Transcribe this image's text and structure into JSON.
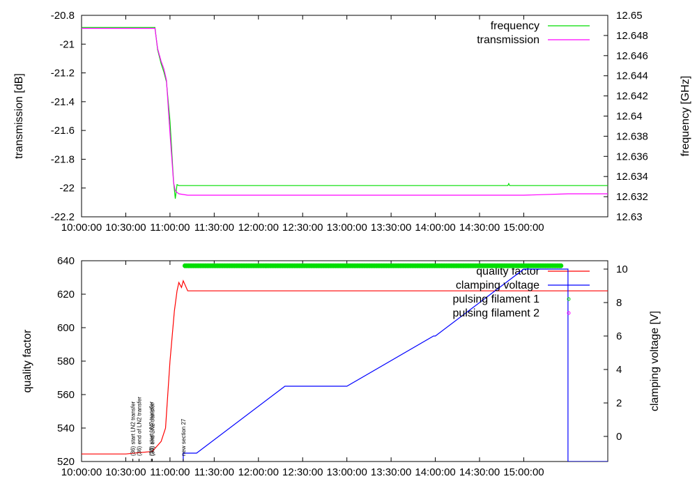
{
  "chart_data": [
    {
      "type": "line",
      "panel": "top",
      "ylabel": "transmission [dB]",
      "y2label": "frequency [GHz]",
      "x_ticks": [
        "10:00:00",
        "10:30:00",
        "11:00:00",
        "11:30:00",
        "12:00:00",
        "12:30:00",
        "13:00:00",
        "13:30:00",
        "14:00:00",
        "14:30:00",
        "15:00:00"
      ],
      "x_range_hours": [
        10.0,
        15.95
      ],
      "ylim": [
        -22.2,
        -20.8
      ],
      "y_ticks": [
        "-20.8",
        "-21",
        "-21.2",
        "-21.4",
        "-21.6",
        "-21.8",
        "-22",
        "-22.2"
      ],
      "y2lim": [
        12.63,
        12.65
      ],
      "y2_ticks": [
        "12.63",
        "12.632",
        "12.634",
        "12.636",
        "12.638",
        "12.64",
        "12.642",
        "12.644",
        "12.646",
        "12.648",
        "12.65"
      ],
      "legend_position": "top-right",
      "series": [
        {
          "name": "frequency",
          "axis": "y2",
          "color": "#00dd00",
          "x": [
            10.0,
            10.83,
            10.86,
            10.9,
            10.93,
            10.96,
            11.0,
            11.04,
            11.06,
            11.08,
            11.1,
            11.15,
            12.0,
            13.0,
            14.0,
            14.82,
            14.83,
            14.84,
            15.0,
            15.95
          ],
          "y": [
            12.6488,
            12.6488,
            12.6466,
            12.6452,
            12.6444,
            12.6434,
            12.6395,
            12.6335,
            12.6318,
            12.6332,
            12.6331,
            12.6331,
            12.6331,
            12.6331,
            12.6331,
            12.6331,
            12.6333,
            12.6331,
            12.6331,
            12.6331
          ]
        },
        {
          "name": "transmission",
          "axis": "y1",
          "color": "#ff00ff",
          "x": [
            10.0,
            10.83,
            10.86,
            10.9,
            10.93,
            10.96,
            11.0,
            11.04,
            11.06,
            11.08,
            11.1,
            11.2,
            12.0,
            13.0,
            14.0,
            15.0,
            15.5,
            15.95
          ],
          "y": [
            -20.89,
            -20.89,
            -21.03,
            -21.12,
            -21.17,
            -21.25,
            -21.62,
            -21.96,
            -22.02,
            -22.03,
            -22.04,
            -22.05,
            -22.05,
            -22.05,
            -22.05,
            -22.05,
            -22.04,
            -22.04
          ]
        }
      ]
    },
    {
      "type": "line",
      "panel": "bottom",
      "ylabel": "quality factor",
      "y2label": "clamping voltage [V]",
      "x_ticks": [
        "10:00:00",
        "10:30:00",
        "11:00:00",
        "11:30:00",
        "12:00:00",
        "12:30:00",
        "13:00:00",
        "13:30:00",
        "14:00:00",
        "14:30:00",
        "15:00:00"
      ],
      "x_range_hours": [
        10.0,
        15.95
      ],
      "ylim": [
        520,
        640
      ],
      "y_ticks": [
        "520",
        "540",
        "560",
        "580",
        "600",
        "620",
        "640"
      ],
      "y2lim": [
        -1.5,
        10.5
      ],
      "y2_ticks": [
        "0",
        "2",
        "4",
        "6",
        "8",
        "10"
      ],
      "legend_position": "top-right",
      "series": [
        {
          "name": "quality factor",
          "axis": "y1",
          "color": "#ff0000",
          "x": [
            10.0,
            10.5,
            10.8,
            10.9,
            10.95,
            11.0,
            11.05,
            11.08,
            11.1,
            11.13,
            11.15,
            11.2,
            12.0,
            13.0,
            14.0,
            15.0,
            15.95
          ],
          "y": [
            524.5,
            524.5,
            526,
            532,
            540,
            580,
            610,
            622,
            627,
            624,
            628,
            622,
            622,
            622,
            622,
            622,
            622
          ]
        },
        {
          "name": "clamping voltage",
          "axis": "y2",
          "color": "#0000ff",
          "x": [
            11.15,
            11.15,
            11.3,
            12.3,
            13.0,
            13.98,
            14.0,
            15.0,
            15.5,
            15.5,
            15.95
          ],
          "y": [
            -1.5,
            -1.0,
            -1.0,
            3.0,
            3.0,
            6.0,
            6.0,
            10.0,
            10.0,
            -1.5,
            -1.5
          ]
        },
        {
          "name": "pulsing filament 1",
          "axis": "y1",
          "color": "#00dd00",
          "marker": "points",
          "x_start": 11.17,
          "x_end": 15.42,
          "y": 637
        },
        {
          "name": "pulsing filament 2",
          "axis": "y1",
          "color": "#ff00ff",
          "marker": "points",
          "x": [],
          "y": []
        }
      ],
      "annotations": [
        {
          "x": 10.58,
          "text": "(36) start LN2 transfer"
        },
        {
          "x": 10.65,
          "text": "(36) end of LN2 transfer"
        },
        {
          "x": 10.79,
          "text": "(38) start LN2 transfer"
        },
        {
          "x": 10.8,
          "text": "(39) end LN2 transfer"
        },
        {
          "x": 11.15,
          "text": "new section 27"
        }
      ]
    }
  ]
}
